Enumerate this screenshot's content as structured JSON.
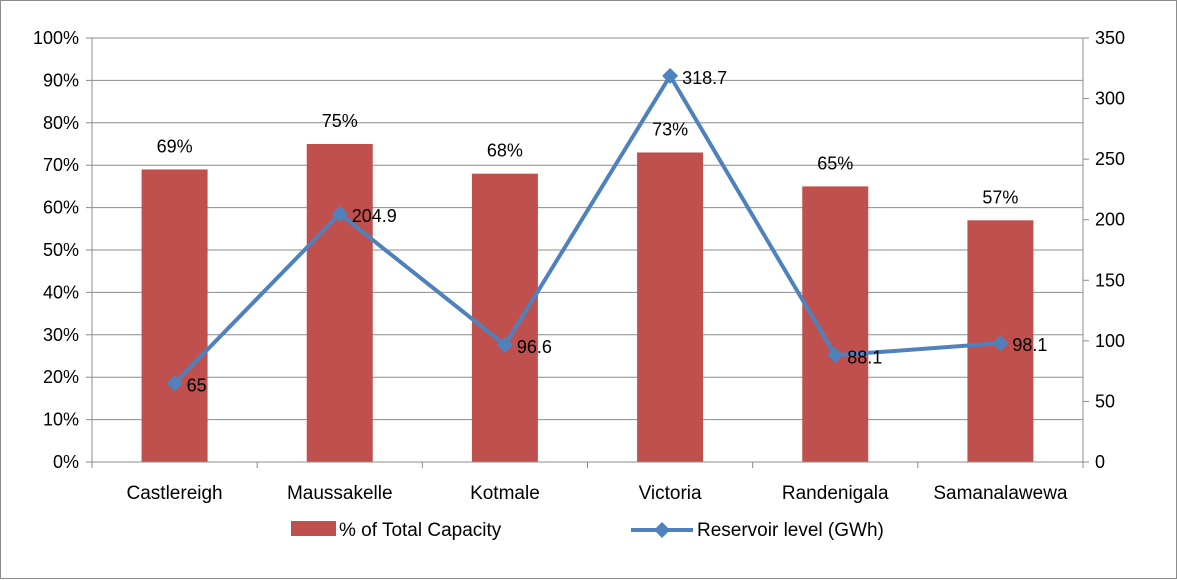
{
  "chart_data": {
    "type": "bar+line",
    "categories": [
      "Castlereigh",
      "Maussakelle",
      "Kotmale",
      "Victoria",
      "Randenigala",
      "Samanalawewa"
    ],
    "series": [
      {
        "name": "% of Total Capacity",
        "type": "bar",
        "axis": "left",
        "color": "#c0504d",
        "values": [
          0.69,
          0.75,
          0.68,
          0.73,
          0.65,
          0.57
        ],
        "labels": [
          "69%",
          "75%",
          "68%",
          "73%",
          "65%",
          "57%"
        ]
      },
      {
        "name": "Reservoir level (GWh)",
        "type": "line",
        "axis": "right",
        "color": "#4f81bd",
        "marker": "diamond",
        "values": [
          65,
          204.9,
          96.6,
          318.7,
          88.1,
          98.1
        ],
        "labels": [
          "65",
          "204.9",
          "96.6",
          "318.7",
          "88.1",
          "98.1"
        ]
      }
    ],
    "y_left": {
      "ylim": [
        0,
        1
      ],
      "ticks": [
        0,
        0.1,
        0.2,
        0.3,
        0.4,
        0.5,
        0.6,
        0.7,
        0.8,
        0.9,
        1.0
      ],
      "tick_labels": [
        "0%",
        "10%",
        "20%",
        "30%",
        "40%",
        "50%",
        "60%",
        "70%",
        "80%",
        "90%",
        "100%"
      ]
    },
    "y_right": {
      "ylim": [
        0,
        350
      ],
      "ticks": [
        0,
        50,
        100,
        150,
        200,
        250,
        300,
        350
      ],
      "tick_labels": [
        "0",
        "50",
        "100",
        "150",
        "200",
        "250",
        "300",
        "350"
      ]
    },
    "grid": true,
    "legend_position": "bottom"
  }
}
